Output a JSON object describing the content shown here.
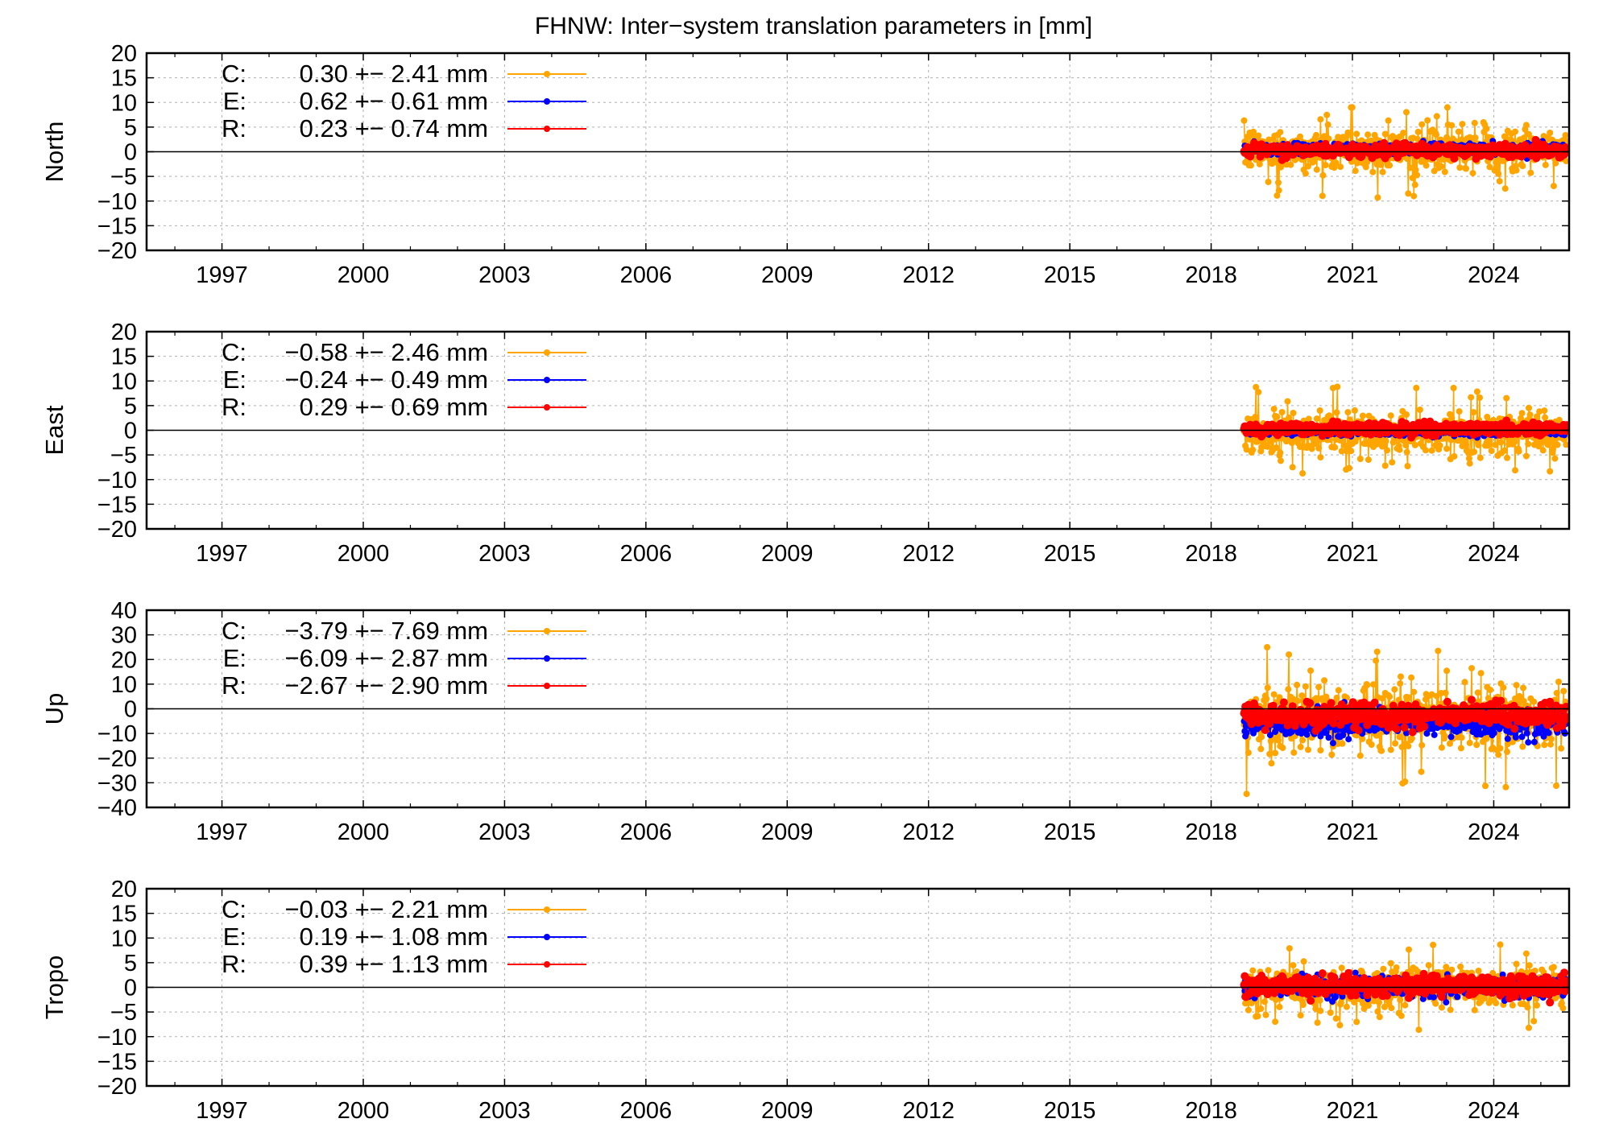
{
  "title": "FHNW: Inter−system translation parameters in [mm]",
  "chart_data": [
    {
      "type": "scatter",
      "ylabel": "North",
      "xlim": [
        1995.4,
        2025.6
      ],
      "ylim": [
        -20,
        20
      ],
      "yticks": [
        20,
        15,
        10,
        5,
        0,
        -5,
        -10,
        -15,
        -20
      ],
      "ytick_labels": [
        "20",
        "15",
        "10",
        "5",
        "0",
        "−5",
        "−10",
        "−15",
        "−20"
      ],
      "xticks": [
        1997,
        2000,
        2003,
        2006,
        2009,
        2012,
        2015,
        2018,
        2021,
        2024
      ],
      "xtick_labels": [
        "1997",
        "2000",
        "2003",
        "2006",
        "2009",
        "2012",
        "2015",
        "2018",
        "2021",
        "2024"
      ],
      "grid": true,
      "zero_line": true,
      "legend_position": "top-left",
      "data_range_x": [
        2018.7,
        2025.55
      ],
      "series": [
        {
          "name": "C",
          "label": "C:",
          "stats": "0.30 +− 2.41 mm",
          "color": "#FFA500",
          "mean": 0.3,
          "std": 2.41,
          "clip_low": -20,
          "clip_high": 9
        },
        {
          "name": "E",
          "label": "E:",
          "stats": "0.62 +− 0.61 mm",
          "color": "#0000FF",
          "mean": 0.62,
          "std": 0.61,
          "clip_low": -3,
          "clip_high": 4
        },
        {
          "name": "R",
          "label": "R:",
          "stats": "0.23 +− 0.74 mm",
          "color": "#FF0000",
          "mean": 0.23,
          "std": 0.74,
          "clip_low": -2.5,
          "clip_high": 3
        }
      ]
    },
    {
      "type": "scatter",
      "ylabel": "East",
      "xlim": [
        1995.4,
        2025.6
      ],
      "ylim": [
        -20,
        20
      ],
      "yticks": [
        20,
        15,
        10,
        5,
        0,
        -5,
        -10,
        -15,
        -20
      ],
      "ytick_labels": [
        "20",
        "15",
        "10",
        "5",
        "0",
        "−5",
        "−10",
        "−15",
        "−20"
      ],
      "xticks": [
        1997,
        2000,
        2003,
        2006,
        2009,
        2012,
        2015,
        2018,
        2021,
        2024
      ],
      "xtick_labels": [
        "1997",
        "2000",
        "2003",
        "2006",
        "2009",
        "2012",
        "2015",
        "2018",
        "2021",
        "2024"
      ],
      "grid": true,
      "zero_line": true,
      "legend_position": "top-left",
      "data_range_x": [
        2018.7,
        2025.55
      ],
      "series": [
        {
          "name": "C",
          "label": "C:",
          "stats": "−0.58 +− 2.46 mm",
          "color": "#FFA500",
          "mean": -0.58,
          "std": 2.46,
          "clip_low": -20,
          "clip_high": 18
        },
        {
          "name": "E",
          "label": "E:",
          "stats": "−0.24 +− 0.49 mm",
          "color": "#0000FF",
          "mean": -0.24,
          "std": 0.49,
          "clip_low": -3,
          "clip_high": 3
        },
        {
          "name": "R",
          "label": "R:",
          "stats": "0.29 +− 0.69 mm",
          "color": "#FF0000",
          "mean": 0.29,
          "std": 0.69,
          "clip_low": -2,
          "clip_high": 2.5
        }
      ]
    },
    {
      "type": "scatter",
      "ylabel": "Up",
      "xlim": [
        1995.4,
        2025.6
      ],
      "ylim": [
        -40,
        40
      ],
      "yticks": [
        40,
        30,
        20,
        10,
        0,
        -10,
        -20,
        -30,
        -40
      ],
      "ytick_labels": [
        "40",
        "30",
        "20",
        "10",
        "0",
        "−10",
        "−20",
        "−30",
        "−40"
      ],
      "xticks": [
        1997,
        2000,
        2003,
        2006,
        2009,
        2012,
        2015,
        2018,
        2021,
        2024
      ],
      "xtick_labels": [
        "1997",
        "2000",
        "2003",
        "2006",
        "2009",
        "2012",
        "2015",
        "2018",
        "2021",
        "2024"
      ],
      "grid": true,
      "zero_line": true,
      "legend_position": "top-left",
      "data_range_x": [
        2018.7,
        2025.55
      ],
      "series": [
        {
          "name": "C",
          "label": "C:",
          "stats": "−3.79 +− 7.69 mm",
          "color": "#FFA500",
          "mean": -3.79,
          "std": 7.69,
          "clip_low": -40,
          "clip_high": 29
        },
        {
          "name": "E",
          "label": "E:",
          "stats": "−6.09 +− 2.87 mm",
          "color": "#0000FF",
          "mean": -6.09,
          "std": 2.87,
          "clip_low": -20,
          "clip_high": 10
        },
        {
          "name": "R",
          "label": "R:",
          "stats": "−2.67 +− 2.90 mm",
          "color": "#FF0000",
          "mean": -2.67,
          "std": 2.9,
          "clip_low": -15,
          "clip_high": 8
        }
      ]
    },
    {
      "type": "scatter",
      "ylabel": "Tropo",
      "xlim": [
        1995.4,
        2025.6
      ],
      "ylim": [
        -20,
        20
      ],
      "yticks": [
        20,
        15,
        10,
        5,
        0,
        -5,
        -10,
        -15,
        -20
      ],
      "ytick_labels": [
        "20",
        "15",
        "10",
        "5",
        "0",
        "−5",
        "−10",
        "−15",
        "−20"
      ],
      "xticks": [
        1997,
        2000,
        2003,
        2006,
        2009,
        2012,
        2015,
        2018,
        2021,
        2024
      ],
      "xtick_labels": [
        "1997",
        "2000",
        "2003",
        "2006",
        "2009",
        "2012",
        "2015",
        "2018",
        "2021",
        "2024"
      ],
      "grid": true,
      "zero_line": true,
      "legend_position": "top-left",
      "data_range_x": [
        2018.7,
        2025.55
      ],
      "series": [
        {
          "name": "C",
          "label": "C:",
          "stats": "−0.03 +− 2.21 mm",
          "color": "#FFA500",
          "mean": -0.03,
          "std": 2.21,
          "clip_low": -12,
          "clip_high": 10
        },
        {
          "name": "E",
          "label": "E:",
          "stats": "0.19 +− 1.08 mm",
          "color": "#0000FF",
          "mean": 0.19,
          "std": 1.08,
          "clip_low": -5,
          "clip_high": 5
        },
        {
          "name": "R",
          "label": "R:",
          "stats": "0.39 +− 1.13 mm",
          "color": "#FF0000",
          "mean": 0.39,
          "std": 1.13,
          "clip_low": -4,
          "clip_high": 4
        }
      ]
    }
  ]
}
